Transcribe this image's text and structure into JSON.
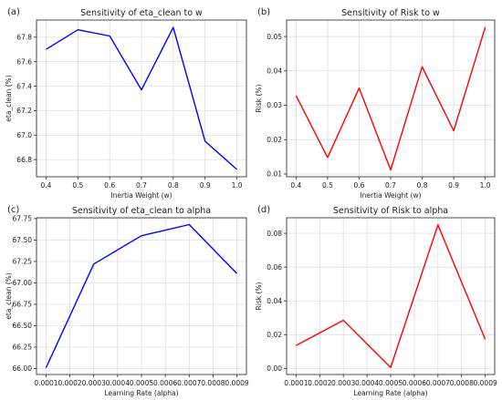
{
  "chart_data": [
    {
      "panel_label": "(a)",
      "type": "line",
      "title": "Sensitivity of eta_clean to w",
      "xlabel": "Inertia Weight (w)",
      "ylabel": "eta_clean (%)",
      "color": "#0000ff",
      "x": [
        0.4,
        0.5,
        0.6,
        0.7,
        0.8,
        0.9,
        1.0
      ],
      "y": [
        67.7,
        67.86,
        67.81,
        67.37,
        67.88,
        66.95,
        66.72
      ],
      "xlim": [
        0.37,
        1.03
      ],
      "ylim": [
        66.66,
        67.94
      ],
      "xticks": [
        0.4,
        0.5,
        0.6,
        0.7,
        0.8,
        0.9,
        1.0
      ],
      "xtick_labels": [
        "0.4",
        "0.5",
        "0.6",
        "0.7",
        "0.8",
        "0.9",
        "1.0"
      ],
      "yticks": [
        66.8,
        67.0,
        67.2,
        67.4,
        67.6,
        67.8
      ],
      "ytick_labels": [
        "66.8",
        "67.0",
        "67.2",
        "67.4",
        "67.6",
        "67.8"
      ],
      "grid": true
    },
    {
      "panel_label": "(b)",
      "type": "line",
      "title": "Sensitivity of Risk to w",
      "xlabel": "Inertia Weight (w)",
      "ylabel": "Risk (%)",
      "color": "#ff0000",
      "x": [
        0.4,
        0.5,
        0.6,
        0.7,
        0.8,
        0.9,
        1.0
      ],
      "y": [
        0.0328,
        0.0148,
        0.035,
        0.0112,
        0.0412,
        0.0226,
        0.0527
      ],
      "xlim": [
        0.37,
        1.03
      ],
      "ylim": [
        0.0092,
        0.0548
      ],
      "xticks": [
        0.4,
        0.5,
        0.6,
        0.7,
        0.8,
        0.9,
        1.0
      ],
      "xtick_labels": [
        "0.4",
        "0.5",
        "0.6",
        "0.7",
        "0.8",
        "0.9",
        "1.0"
      ],
      "yticks": [
        0.01,
        0.02,
        0.03,
        0.04,
        0.05
      ],
      "ytick_labels": [
        "0.01",
        "0.02",
        "0.03",
        "0.04",
        "0.05"
      ],
      "grid": true
    },
    {
      "panel_label": "(c)",
      "type": "line",
      "title": "Sensitivity of eta_clean to alpha",
      "xlabel": "Learning Rate (alpha)",
      "ylabel": "eta_clean (%)",
      "color": "#0000ff",
      "x": [
        0.0001,
        0.0003,
        0.0005,
        0.0007,
        0.0009
      ],
      "y": [
        66.01,
        67.22,
        67.55,
        67.68,
        67.11
      ],
      "xlim": [
        6e-05,
        0.00094
      ],
      "ylim": [
        65.93,
        67.76
      ],
      "xticks": [
        0.0001,
        0.0002,
        0.0003,
        0.0004,
        0.0005,
        0.0006,
        0.0007,
        0.0008,
        0.0009
      ],
      "xtick_labels": [
        "0.0001",
        "0.0002",
        "0.0003",
        "0.0004",
        "0.0005",
        "0.0006",
        "0.0007",
        "0.0008",
        "0.0009"
      ],
      "yticks": [
        66.0,
        66.25,
        66.5,
        66.75,
        67.0,
        67.25,
        67.5,
        67.75
      ],
      "ytick_labels": [
        "66.00",
        "66.25",
        "66.50",
        "66.75",
        "67.00",
        "67.25",
        "67.50",
        "67.75"
      ],
      "grid": true
    },
    {
      "panel_label": "(d)",
      "type": "line",
      "title": "Sensitivity of Risk to alpha",
      "xlabel": "Learning Rate (alpha)",
      "ylabel": "Risk (%)",
      "color": "#ff0000",
      "x": [
        0.0001,
        0.0003,
        0.0005,
        0.0007,
        0.0009
      ],
      "y": [
        0.0136,
        0.0285,
        0.0005,
        0.085,
        0.0172
      ],
      "xlim": [
        6e-05,
        0.00094
      ],
      "ylim": [
        -0.0036,
        0.0892
      ],
      "xticks": [
        0.0001,
        0.0002,
        0.0003,
        0.0004,
        0.0005,
        0.0006,
        0.0007,
        0.0008,
        0.0009
      ],
      "xtick_labels": [
        "0.0001",
        "0.0002",
        "0.0003",
        "0.0004",
        "0.0005",
        "0.0006",
        "0.0007",
        "0.0008",
        "0.0009"
      ],
      "yticks": [
        0.0,
        0.02,
        0.04,
        0.06,
        0.08
      ],
      "ytick_labels": [
        "0.00",
        "0.02",
        "0.04",
        "0.06",
        "0.08"
      ],
      "grid": true
    }
  ]
}
